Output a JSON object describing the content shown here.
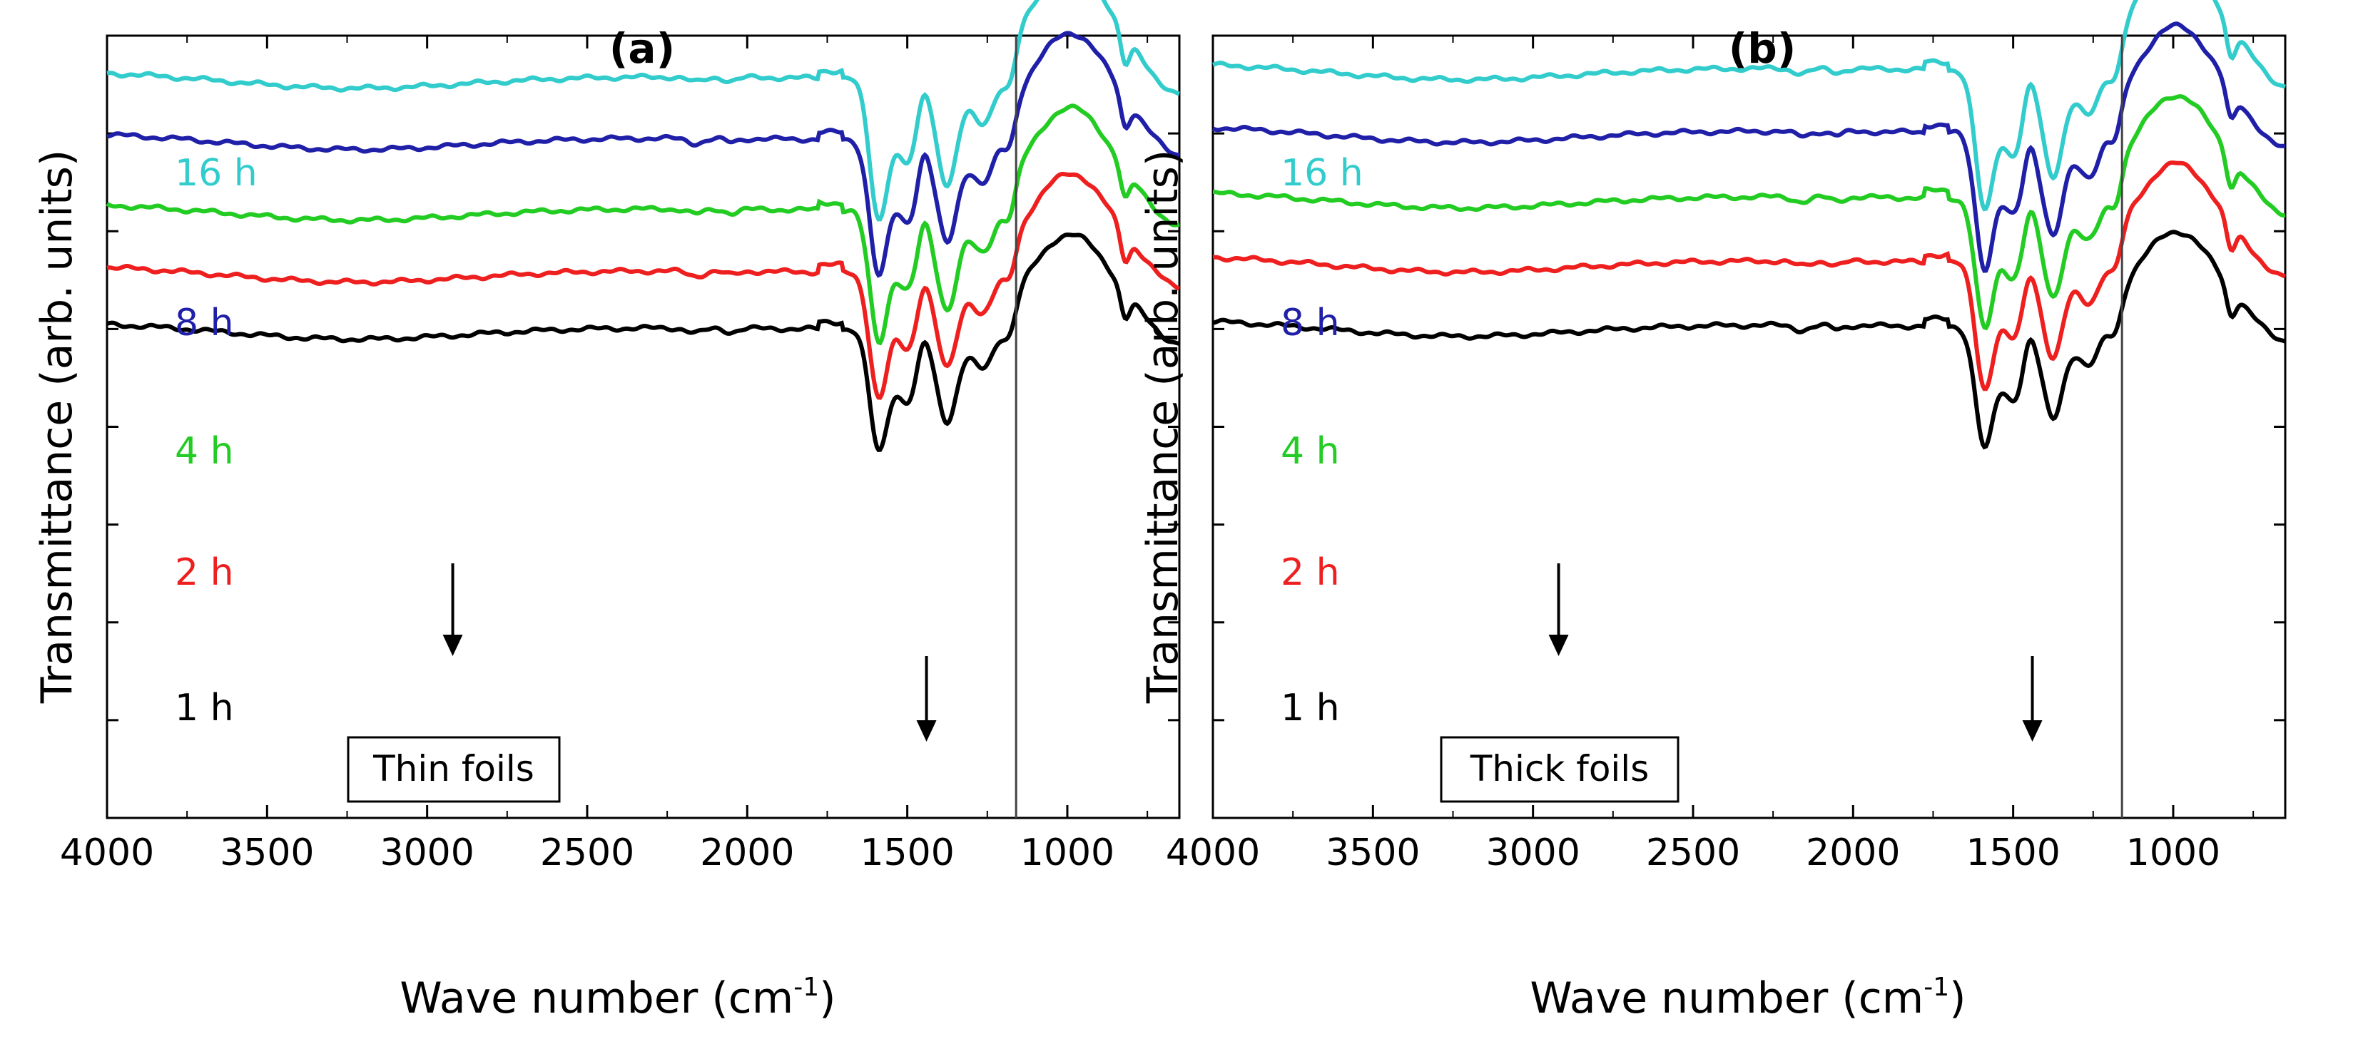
{
  "chart_data": [
    {
      "type": "line",
      "panel": "(a)",
      "title": "(a)",
      "xlabel": "Wave number (cm",
      "xlabel_sup": "-1",
      "xlabel_close": ")",
      "ylabel": "Transmittance (arb. units)",
      "xlim": [
        4000,
        650
      ],
      "x_reversed": true,
      "y_ticks_labeled": false,
      "x_ticks": [
        4000,
        3500,
        3000,
        2500,
        2000,
        1500,
        1000
      ],
      "x_tick_labels": [
        "4000",
        "3500",
        "3000",
        "2500",
        "2000",
        "1500",
        "1000"
      ],
      "vertical_reference_line": 1160,
      "annotation_box": "Thin foils",
      "arrows_at": [
        2920,
        1440
      ],
      "series": [
        {
          "name": "16 h",
          "color": "#33CCCC",
          "offset": 4
        },
        {
          "name": "8 h",
          "color": "#1F1FA8",
          "offset": 3
        },
        {
          "name": "4 h",
          "color": "#22CC22",
          "offset": 2
        },
        {
          "name": "2 h",
          "color": "#EE1F1F",
          "offset": 1
        },
        {
          "name": "1 h",
          "color": "#000000",
          "offset": 0
        }
      ]
    },
    {
      "type": "line",
      "panel": "(b)",
      "title": "(b)",
      "xlabel": "Wave number (cm",
      "xlabel_sup": "-1",
      "xlabel_close": ")",
      "ylabel": "Transmittance (arb. units)",
      "xlim": [
        4000,
        650
      ],
      "x_reversed": true,
      "y_ticks_labeled": false,
      "x_ticks": [
        4000,
        3500,
        3000,
        2500,
        2000,
        1500,
        1000
      ],
      "x_tick_labels": [
        "4000",
        "3500",
        "3000",
        "2500",
        "2000",
        "1500",
        "1000"
      ],
      "vertical_reference_line": 1160,
      "annotation_box": "Thick foils",
      "arrows_at": [
        2920,
        1440
      ],
      "series": [
        {
          "name": "16 h",
          "color": "#33CCCC",
          "offset": 4
        },
        {
          "name": "8 h",
          "color": "#1F1FA8",
          "offset": 3
        },
        {
          "name": "4 h",
          "color": "#22CC22",
          "offset": 2
        },
        {
          "name": "2 h",
          "color": "#EE1F1F",
          "offset": 1
        },
        {
          "name": "1 h",
          "color": "#000000",
          "offset": 0
        }
      ]
    }
  ]
}
